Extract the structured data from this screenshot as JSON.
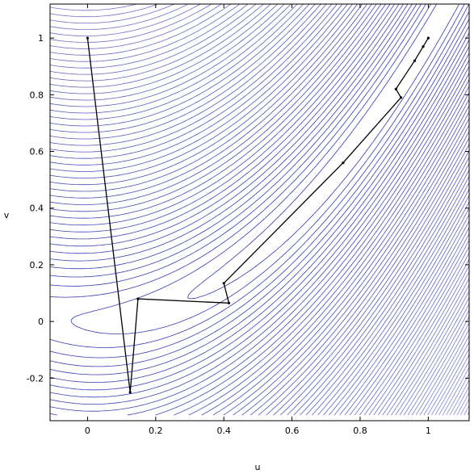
{
  "chart_data": {
    "type": "line",
    "title": "",
    "xlabel": "u",
    "ylabel": "v",
    "xlim": [
      -0.11,
      1.12
    ],
    "ylim": [
      -0.35,
      1.12
    ],
    "xticks": [
      0,
      0.2,
      0.4,
      0.6,
      0.8,
      1
    ],
    "xtick_labels": [
      "0",
      "0.2",
      "0.4",
      "0.6",
      "0.8",
      "1"
    ],
    "yticks": [
      -0.2,
      0,
      0.2,
      0.4,
      0.6,
      0.8,
      1
    ],
    "ytick_labels": [
      "-0.2",
      "0",
      "0.2",
      "0.4",
      "0.6",
      "0.8",
      "1"
    ],
    "grid": false,
    "legend": "none",
    "colors": {
      "contour": "#2a2ab0",
      "path": "#000000",
      "frame": "#000000"
    },
    "contour_levels": [
      0.5,
      1.1,
      1.8,
      2.6,
      3.5,
      4.5,
      5.6,
      6.8,
      8.1,
      9.5,
      11,
      12.6,
      14.3,
      16.1,
      18,
      20,
      22.1,
      24.3,
      26.6,
      29,
      31.5,
      34.1,
      36.8,
      39.6,
      42.5,
      45.5,
      48.6,
      51.8,
      55.1,
      58.5,
      62,
      65.6,
      69.3,
      73.1,
      77,
      81,
      85.1,
      89.3,
      93.6,
      98,
      102.5,
      107.1,
      111.8,
      116.6,
      121.5,
      126.5,
      131.6,
      136.8,
      142.1,
      147.5,
      153,
      158.6,
      164.3,
      170.1,
      176,
      182,
      188.1,
      194.3,
      200.6,
      207,
      213.5,
      220.1,
      226.8,
      233.6,
      240.5,
      247.5,
      254.6,
      261.8,
      269.1,
      276.5,
      284,
      291.6,
      299.3,
      307.1,
      315,
      323,
      331.1,
      339.3,
      347.6,
      356,
      364.5,
      373.1,
      381.8,
      390.6
    ],
    "series": [
      {
        "x": [
          0,
          0.125,
          0.148,
          0.415,
          0.4,
          0.75,
          0.92,
          0.905,
          0.96,
          0.985,
          1.0
        ],
        "y": [
          1.0,
          -0.25,
          0.08,
          0.065,
          0.135,
          0.56,
          0.79,
          0.82,
          0.92,
          0.97,
          1.0
        ]
      }
    ]
  }
}
